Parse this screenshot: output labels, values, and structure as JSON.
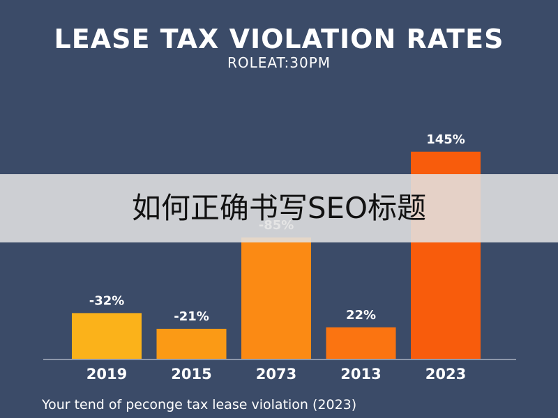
{
  "chart_data": {
    "type": "bar",
    "title": "LEASE TAX VIOLATION RATES",
    "subtitle": "ROLEAT:30PM",
    "categories": [
      "2019",
      "2015",
      "2073",
      "2013",
      "2023"
    ],
    "values": [
      -32,
      -21,
      -85,
      22,
      145
    ],
    "value_labels": [
      "-32%",
      "-21%",
      "-85%",
      "22%",
      "145%"
    ],
    "bar_colors": [
      "#fbb21a",
      "#fb9a15",
      "#fb8a14",
      "#fb7411",
      "#f85c0c"
    ],
    "grid": false,
    "legend": "none",
    "footnote": "Your tend of peconge tax lease violation (2023)"
  },
  "overlay": {
    "text": "如何正确书写SEO标题"
  },
  "colors": {
    "background": "#3b4b68",
    "text": "#ffffff",
    "overlay_band": "#e1e1e1"
  }
}
